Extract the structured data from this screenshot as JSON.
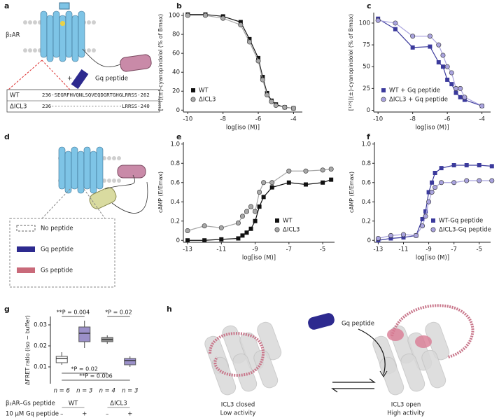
{
  "panels": {
    "a": {
      "label": "a",
      "receptor": "β₂AR",
      "plus": "+",
      "peptide": "Gq peptide",
      "table": {
        "rows": [
          [
            "WT",
            "236-SEGRFHVQNLSQVEQDGRTGHGLRRSS-262"
          ],
          [
            "ΔICL3",
            "236-----------------------LRRSS-240"
          ]
        ]
      }
    },
    "d": {
      "label": "d",
      "legend": [
        "No peptide",
        "Gq peptide",
        "Gs peptide"
      ]
    },
    "h": {
      "label": "h",
      "peptide": "Gq peptide",
      "left": [
        "ICL3 closed",
        "Low activity"
      ],
      "right": [
        "ICL3 open",
        "High activity"
      ]
    }
  },
  "chart_data": [
    {
      "type": "scatter",
      "panel": "b",
      "ylabel": "[¹²⁵I](±)-cyanopindolol (% of Bmax)",
      "xlabel": "log[iso (M)]",
      "xlim": [
        -10.25,
        -3.5
      ],
      "ylim": [
        -2,
        103
      ],
      "xticks": [
        -10,
        -8,
        -6,
        -4
      ],
      "yticks": [
        0,
        20,
        40,
        60,
        80,
        100
      ],
      "legend": "lower left",
      "x": [
        -10,
        -9,
        -8,
        -7,
        -6.5,
        -6,
        -5.75,
        -5.5,
        -5.25,
        -5,
        -4.5,
        -4
      ],
      "series": [
        {
          "name": "WT",
          "color": "#111111",
          "marker": "square",
          "values": [
            101,
            101,
            99,
            93,
            75,
            55,
            35,
            18,
            10,
            6,
            3,
            2
          ]
        },
        {
          "name": "ΔICL3",
          "color": "#a8a8a8",
          "marker": "circle",
          "values": [
            100,
            100,
            97,
            90,
            72,
            52,
            32,
            16,
            9,
            5,
            3,
            2
          ]
        }
      ]
    },
    {
      "type": "scatter",
      "panel": "c",
      "ylabel": "[¹²⁵I](±)-cyanopindolol (% of Bmax)",
      "xlabel": "log[iso (M)]",
      "xlim": [
        -10.25,
        -3.5
      ],
      "ylim": [
        -2,
        112
      ],
      "xticks": [
        -10,
        -8,
        -6,
        -4
      ],
      "yticks": [
        0,
        25,
        50,
        75,
        100
      ],
      "legend": "lower left",
      "x": [
        -10,
        -9,
        -8,
        -7,
        -6.5,
        -6.25,
        -6,
        -5.75,
        -5.5,
        -5.25,
        -5,
        -4
      ],
      "series": [
        {
          "name": "WT + Gq peptide",
          "color": "#3b3a9c",
          "marker": "square",
          "values": [
            105,
            93,
            72,
            73,
            55,
            50,
            35,
            30,
            20,
            15,
            12,
            5
          ]
        },
        {
          "name": "ΔICL3 + Gq peptide",
          "color": "#a9a3de",
          "marker": "circle",
          "values": [
            103,
            100,
            85,
            85,
            75,
            63,
            50,
            43,
            25,
            25,
            15,
            5
          ]
        }
      ]
    },
    {
      "type": "scatter",
      "panel": "e",
      "ylabel": "cAMP (E/Emax)",
      "xlabel": "log[iso (M)]",
      "xlim": [
        -13.25,
        -4.3
      ],
      "ylim": [
        -0.02,
        1.02
      ],
      "xticks": [
        -13,
        -11,
        -9,
        -7,
        -5
      ],
      "yticks": [
        0,
        0.2,
        0.4,
        0.6,
        0.8,
        {
          "value": 1,
          "label": "1.0"
        }
      ],
      "legend": "lower right",
      "x": [
        -13,
        -12,
        -11,
        -10,
        -9.75,
        -9.5,
        -9.25,
        -9,
        -8.75,
        -8.5,
        -8,
        -7,
        -6,
        -5,
        -4.5
      ],
      "series": [
        {
          "name": "WT",
          "color": "#111111",
          "marker": "square",
          "values": [
            0,
            0,
            0.01,
            0.02,
            0.05,
            0.08,
            0.12,
            0.2,
            0.35,
            0.45,
            0.55,
            0.6,
            0.58,
            0.6,
            0.63
          ]
        },
        {
          "name": "ΔICL3",
          "color": "#a8a8a8",
          "marker": "circle",
          "values": [
            0.1,
            0.15,
            0.13,
            0.18,
            0.25,
            0.3,
            0.35,
            0.3,
            0.5,
            0.6,
            0.6,
            0.72,
            0.72,
            0.73,
            0.74
          ]
        }
      ]
    },
    {
      "type": "scatter",
      "panel": "f",
      "ylabel": "cAMP (E/Emax)",
      "xlabel": "log[iso (M)]",
      "xlim": [
        -13.3,
        -4.1
      ],
      "ylim": [
        -0.02,
        1.02
      ],
      "xticks": [
        -13,
        -11,
        -9,
        -7,
        -5
      ],
      "yticks": [
        0,
        0.2,
        0.4,
        0.6,
        0.8,
        {
          "value": 1,
          "label": "1.0"
        }
      ],
      "legend": "lower right",
      "x": [
        -13,
        -12,
        -11,
        -10,
        -9.5,
        -9.25,
        -9,
        -8.75,
        -8.5,
        -8,
        -7,
        -6,
        -5,
        -4
      ],
      "series": [
        {
          "name": "WT-Gq peptide",
          "color": "#3b3a9c",
          "marker": "square",
          "values": [
            0,
            0.02,
            0.03,
            0.05,
            0.22,
            0.3,
            0.5,
            0.6,
            0.7,
            0.75,
            0.78,
            0.78,
            0.78,
            0.77
          ]
        },
        {
          "name": "ΔICL3-Gq peptide",
          "color": "#a9a3de",
          "marker": "circle",
          "values": [
            0.02,
            0.05,
            0.06,
            0.05,
            0.15,
            0.25,
            0.4,
            0.5,
            0.55,
            0.6,
            0.6,
            0.62,
            0.62,
            0.62
          ]
        }
      ]
    },
    {
      "type": "box",
      "panel": "g",
      "ylabel": "ΔFRET ratio (iso − buffer)",
      "ylim": [
        0.002,
        0.034
      ],
      "yticks": [
        0.01,
        0.02,
        0.03
      ],
      "colors": [
        "#ffffff",
        "#9b90c9",
        "#9a9a9a",
        "#9b90c9"
      ],
      "boxes": [
        {
          "low": 0.011,
          "q1": 0.012,
          "median": 0.014,
          "q3": 0.015,
          "high": 0.017
        },
        {
          "low": 0.019,
          "q1": 0.022,
          "median": 0.026,
          "q3": 0.029,
          "high": 0.032
        },
        {
          "low": 0.021,
          "q1": 0.022,
          "median": 0.023,
          "q3": 0.024,
          "high": 0.025
        },
        {
          "low": 0.01,
          "q1": 0.011,
          "median": 0.013,
          "q3": 0.014,
          "high": 0.015
        }
      ],
      "n_labels": [
        "n = 6",
        "n = 3",
        "n = 4",
        "n = 3"
      ],
      "annotations": [
        "**P = 0.004",
        "*P = 0.02",
        "*P = 0.02",
        "**P = 0.006"
      ],
      "row_labels": [
        "β₂AR–Gs peptide",
        "10 µM Gq peptide"
      ],
      "genotypes": [
        "WT",
        "ΔICL3"
      ],
      "signs": [
        "–",
        "+",
        "–",
        "+"
      ]
    }
  ]
}
